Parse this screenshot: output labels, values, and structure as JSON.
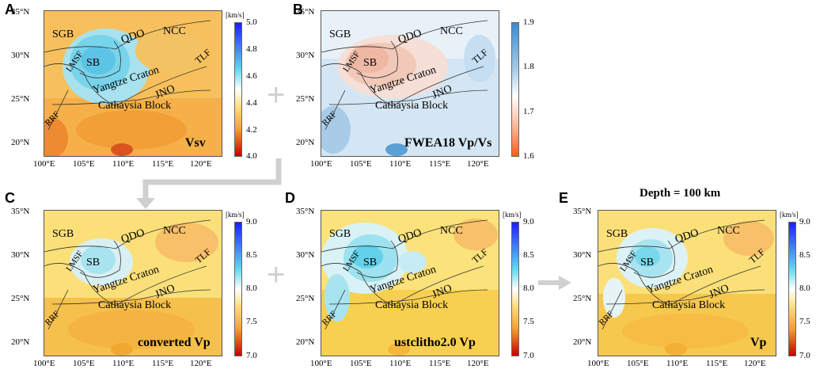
{
  "labels": {
    "lat": [
      "35°N",
      "30°N",
      "25°N",
      "20°N"
    ],
    "lon": [
      "100°E",
      "105°E",
      "110°E",
      "115°E",
      "120°E"
    ],
    "geo": {
      "sgb": "SGB",
      "qdo": "QDO",
      "ncc": "NCC",
      "tlf": "TLF",
      "lmsf": "LMSF",
      "sb": "SB",
      "yangtze": "Yangtze Craton",
      "jno": "JNO",
      "rrf": "RRF",
      "cathaysia": "Cathaysia Block"
    },
    "unit": "[km/s]"
  },
  "panels": [
    {
      "letter": "A",
      "caption": "Vsv",
      "ticks": [
        "5.0",
        "4.8",
        "4.6",
        "4.4",
        "4.2",
        "4.0"
      ],
      "theme": "vs"
    },
    {
      "letter": "B",
      "caption": "FWEA18 Vp/Vs",
      "ticks": [
        "1.9",
        "1.8",
        "1.7",
        "1.6"
      ],
      "theme": "ratio"
    },
    {
      "letter": "C",
      "caption": "converted Vp",
      "ticks": [
        "9.0",
        "8.5",
        "8.0",
        "7.5",
        "7.0"
      ],
      "theme": "vp"
    },
    {
      "letter": "D",
      "caption": "ustclitho2.0 Vp",
      "ticks": [
        "9.0",
        "8.5",
        "8.0",
        "7.5",
        "7.0"
      ],
      "theme": "vpd"
    },
    {
      "letter": "E",
      "caption": "Vp",
      "ticks": [
        "9.0",
        "8.5",
        "8.0",
        "7.5",
        "7.0"
      ],
      "theme": "vp"
    }
  ],
  "depth_title": "Depth = 100 km",
  "colors": {
    "seismic_top": "#1e1eff",
    "seismic_cyan": "#62d8ee",
    "seismic_mid": "#ffffff",
    "seismic_yellow": "#ffe08a",
    "seismic_bottom": "#c80000",
    "ratio_top": "#3a8cd0",
    "ratio_bottom": "#ff5a20",
    "operator": "#d0d0d0"
  }
}
